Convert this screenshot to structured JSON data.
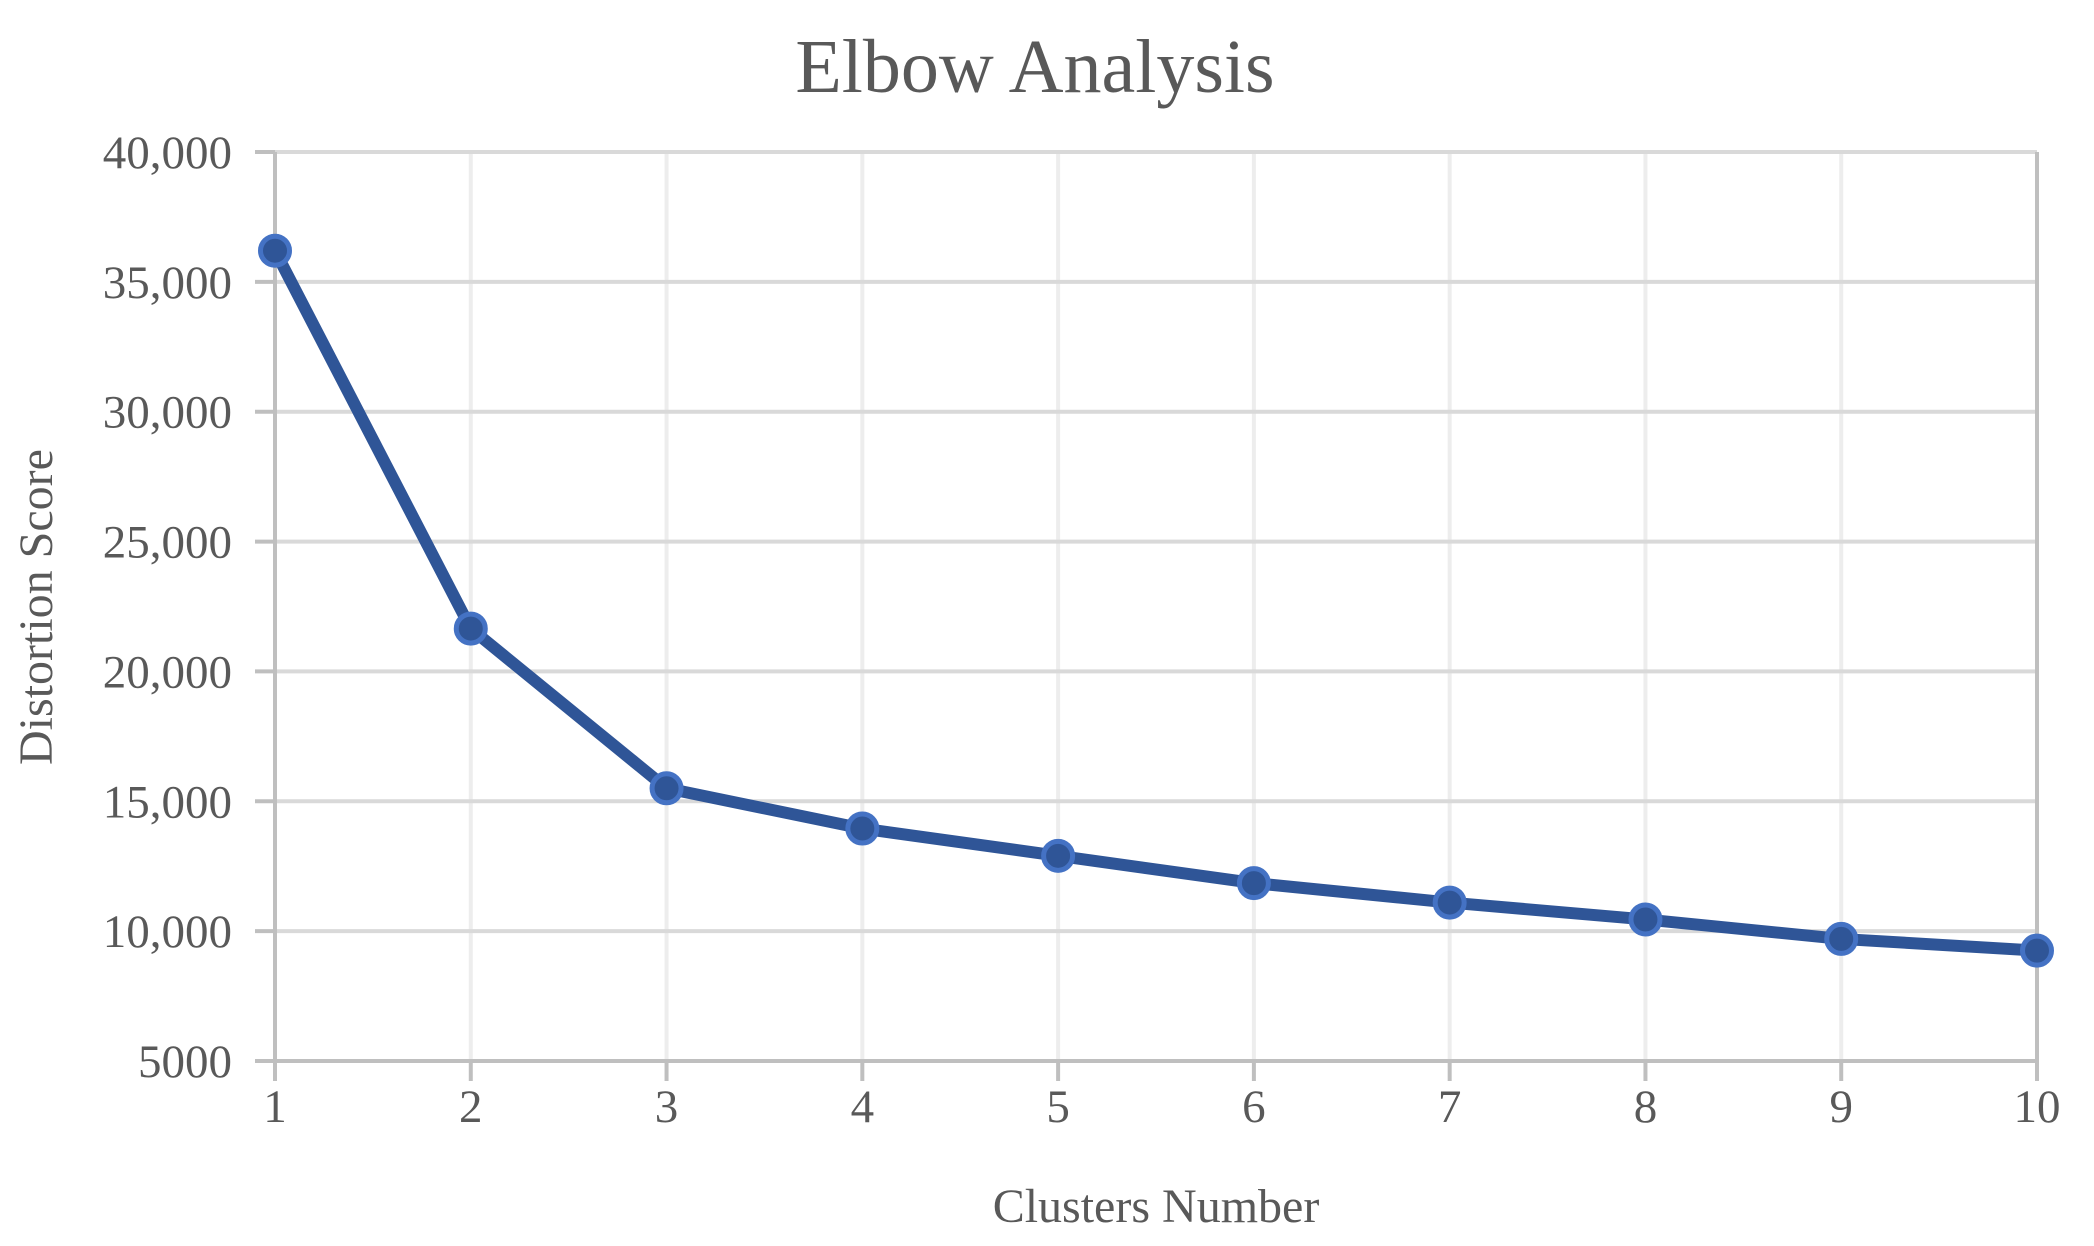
{
  "chart_data": {
    "type": "line",
    "title": "Elbow Analysis",
    "xlabel": "Clusters Number",
    "ylabel": "Distortion Score",
    "x": [
      1,
      2,
      3,
      4,
      5,
      6,
      7,
      8,
      9,
      10
    ],
    "series": [
      {
        "name": "Distortion Score",
        "values": [
          36200,
          21650,
          15500,
          13950,
          12900,
          11850,
          11100,
          10450,
          9700,
          9250
        ]
      }
    ],
    "xtick_labels": [
      "1",
      "2",
      "3",
      "4",
      "5",
      "6",
      "7",
      "8",
      "9",
      "10"
    ],
    "ytick_values": [
      5000,
      10000,
      15000,
      20000,
      25000,
      30000,
      35000,
      40000
    ],
    "ytick_labels": [
      "5000",
      "10,000",
      "15,000",
      "20,000",
      "25,000",
      "30,000",
      "35,000",
      "40,000"
    ],
    "ylim": [
      5000,
      40000
    ],
    "xlim": [
      1,
      10
    ],
    "grid": "horizontal-major-and-faint-vertical",
    "legend": "none",
    "colors": {
      "line": "#2F5597",
      "marker_fill": "#2F5597",
      "marker_border": "#4472C4",
      "grid_horizontal": "#D9D9D9",
      "grid_vertical": "#EDEDED",
      "axis": "#BFBFBF",
      "text": "#595959",
      "background": "#FFFFFF"
    }
  }
}
